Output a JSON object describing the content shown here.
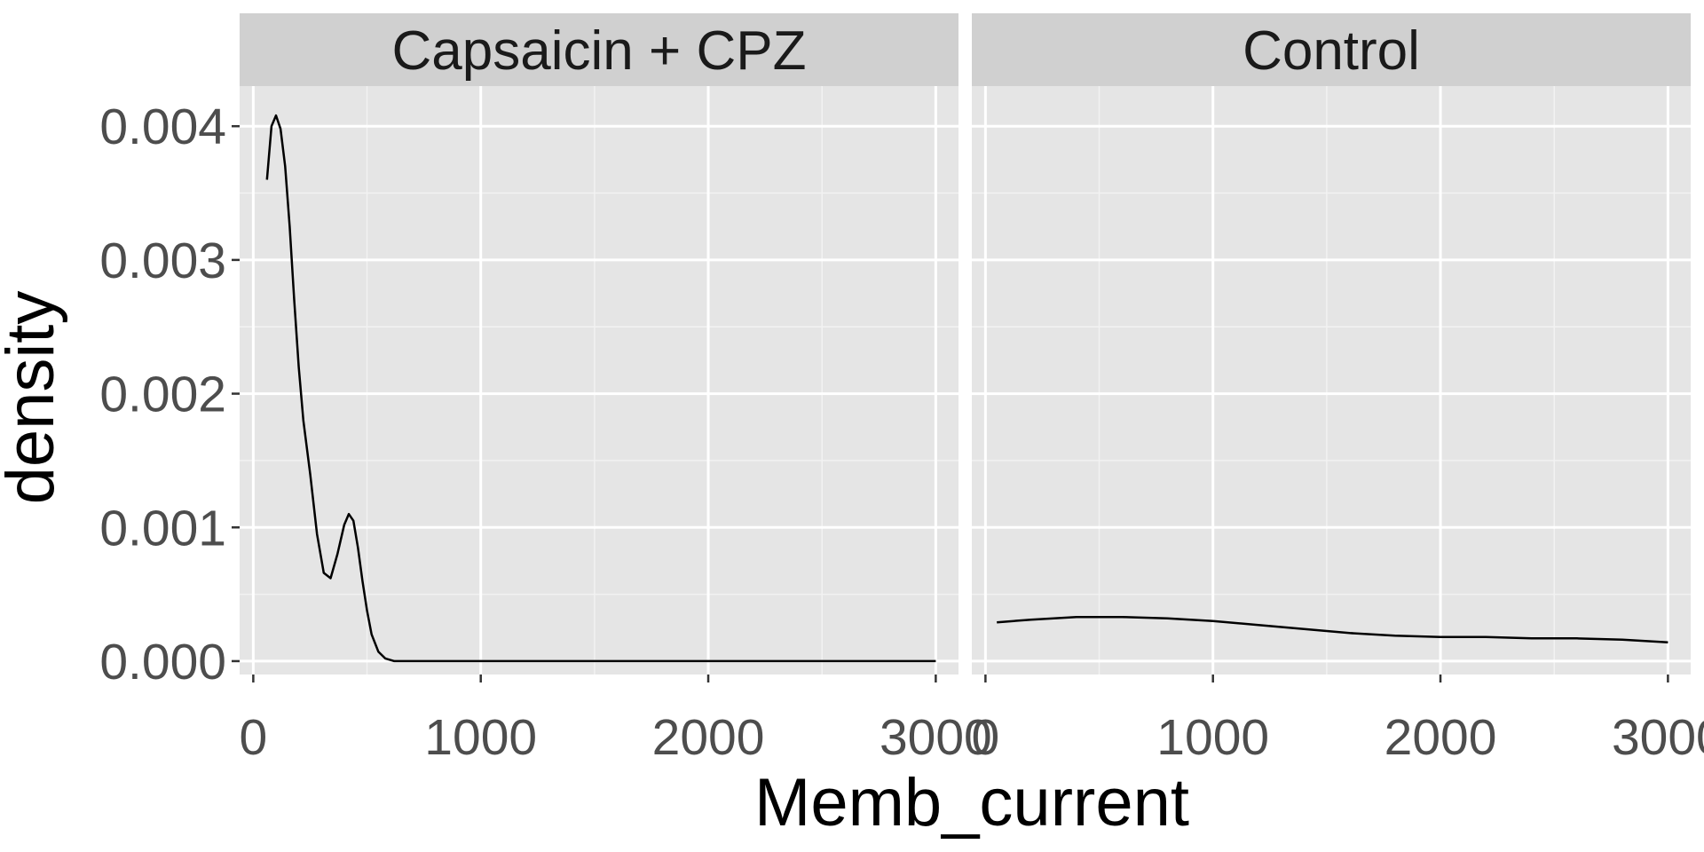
{
  "chart_data": {
    "type": "line",
    "subtype": "density",
    "xlabel": "Memb_current",
    "ylabel": "density",
    "xlim": [
      -60,
      3100
    ],
    "ylim": [
      -0.0001,
      0.0043
    ],
    "x_ticks": [
      0,
      1000,
      2000,
      3000
    ],
    "x_tick_labels": [
      "0",
      "1000",
      "2000",
      "3000"
    ],
    "y_ticks": [
      0.0,
      0.001,
      0.002,
      0.003,
      0.004
    ],
    "y_tick_labels": [
      "0.000",
      "0.001",
      "0.002",
      "0.003",
      "0.004"
    ],
    "grid": true,
    "panel_background": "#e5e5e5",
    "strip_background": "#d0d0d0",
    "line_color": "#000000",
    "panels": [
      {
        "strip": "Capsaicin + CPZ",
        "x": [
          60,
          80,
          100,
          120,
          140,
          160,
          180,
          200,
          220,
          250,
          280,
          310,
          340,
          370,
          400,
          420,
          440,
          460,
          480,
          500,
          520,
          550,
          580,
          620,
          700,
          800,
          1000,
          1500,
          2000,
          2500,
          3000
        ],
        "y": [
          0.0036,
          0.004,
          0.00408,
          0.00398,
          0.0037,
          0.00325,
          0.0027,
          0.0022,
          0.0018,
          0.0014,
          0.00095,
          0.00066,
          0.00062,
          0.0008,
          0.00102,
          0.0011,
          0.00105,
          0.00085,
          0.0006,
          0.00038,
          0.0002,
          7e-05,
          2e-05,
          0.0,
          0.0,
          0.0,
          0.0,
          0.0,
          0.0,
          0.0,
          0.0
        ]
      },
      {
        "strip": "Control",
        "x": [
          50,
          200,
          400,
          500,
          600,
          800,
          1000,
          1200,
          1400,
          1600,
          1800,
          2000,
          2200,
          2400,
          2600,
          2800,
          3000
        ],
        "y": [
          0.00029,
          0.00031,
          0.00033,
          0.00033,
          0.00033,
          0.00032,
          0.0003,
          0.00027,
          0.00024,
          0.00021,
          0.00019,
          0.00018,
          0.00018,
          0.00017,
          0.00017,
          0.00016,
          0.00014
        ]
      }
    ]
  }
}
